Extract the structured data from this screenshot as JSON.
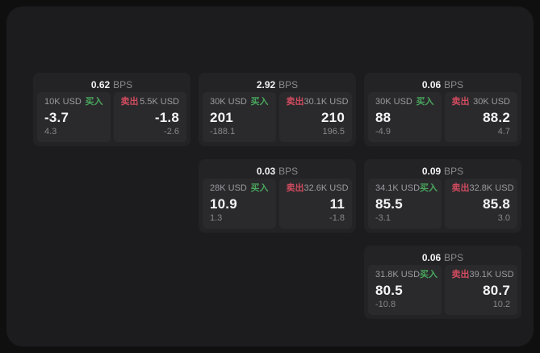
{
  "labels": {
    "bps": "BPS",
    "buy": "买入",
    "sell": "卖出"
  },
  "colors": {
    "buy_green": "#4aa65c",
    "sell_red": "#cf4b5e",
    "outer_background": "#0f0f10",
    "panel_background": "#1c1c1e",
    "card_background": "#232326",
    "tile_background": "#2a2a2d"
  },
  "cards": [
    {
      "bps": "0.62",
      "buy": {
        "amount": "10K USD",
        "price": "-3.7",
        "delta": "4.3"
      },
      "sell": {
        "amount": "5.5K USD",
        "price": "-1.8",
        "delta": "-2.6"
      }
    },
    {
      "bps": "2.92",
      "buy": {
        "amount": "30K USD",
        "price": "201",
        "delta": "-188.1"
      },
      "sell": {
        "amount": "30.1K USD",
        "price": "210",
        "delta": "196.5"
      }
    },
    {
      "bps": "0.06",
      "buy": {
        "amount": "30K USD",
        "price": "88",
        "delta": "-4.9"
      },
      "sell": {
        "amount": "30K USD",
        "price": "88.2",
        "delta": "4.7"
      }
    },
    {
      "bps": "0.03",
      "buy": {
        "amount": "28K USD",
        "price": "10.9",
        "delta": "1.3"
      },
      "sell": {
        "amount": "32.6K USD",
        "price": "11",
        "delta": "-1.8"
      }
    },
    {
      "bps": "0.09",
      "buy": {
        "amount": "34.1K USD",
        "price": "85.5",
        "delta": "-3.1"
      },
      "sell": {
        "amount": "32.8K USD",
        "price": "85.8",
        "delta": "3.0"
      }
    },
    {
      "bps": "0.06",
      "buy": {
        "amount": "31.8K USD",
        "price": "80.5",
        "delta": "-10.8"
      },
      "sell": {
        "amount": "39.1K USD",
        "price": "80.7",
        "delta": "10.2"
      }
    }
  ]
}
